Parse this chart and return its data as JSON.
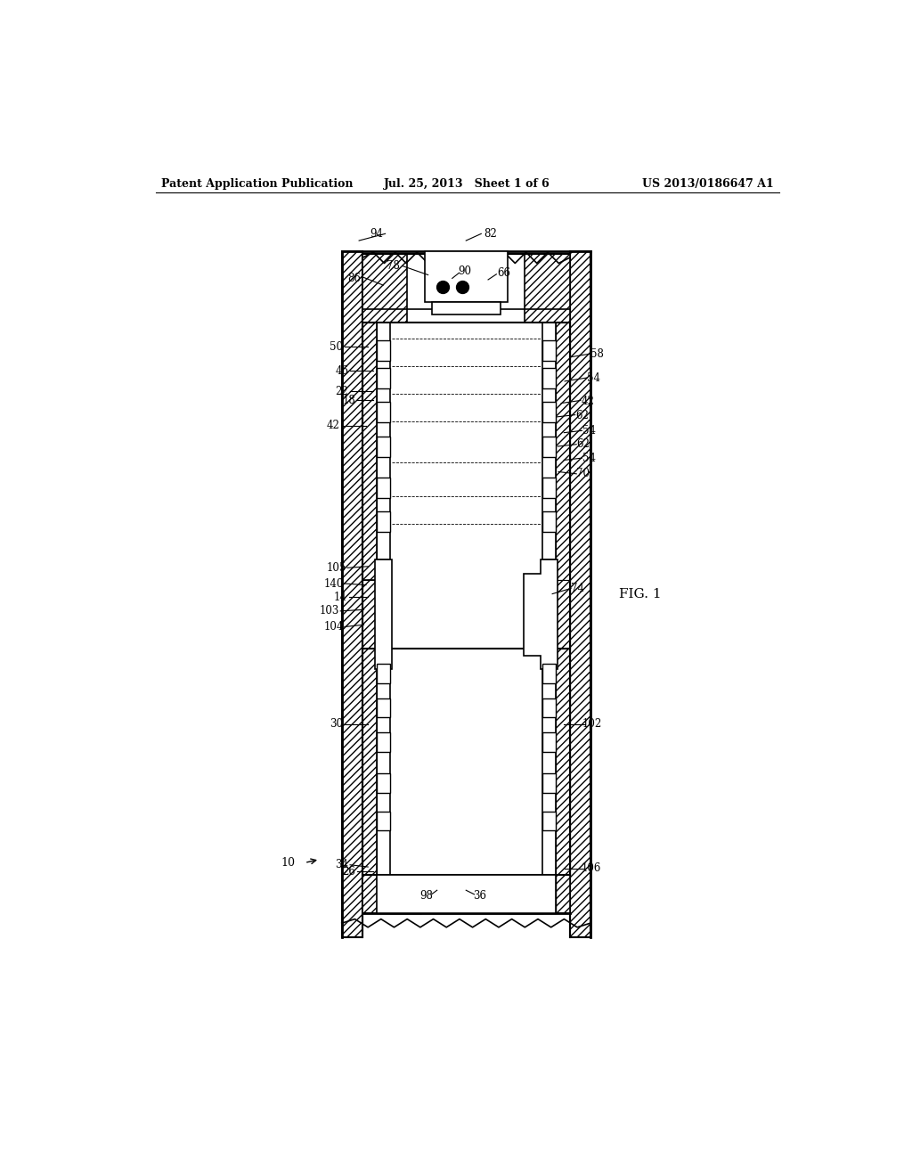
{
  "bg_color": "#ffffff",
  "line_color": "#000000",
  "header_left": "Patent Application Publication",
  "header_mid": "Jul. 25, 2013   Sheet 1 of 6",
  "header_right": "US 2013/0186647 A1",
  "fig_label": "FIG. 1"
}
